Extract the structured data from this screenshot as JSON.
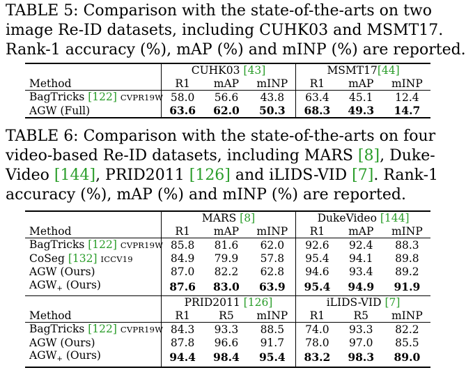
{
  "table5": {
    "caption_lines": [
      "TABLE 5: Comparison with the state-of-the-arts on two",
      "image Re-ID datasets, including CUHK03 and MSMT17.",
      "Rank-1 accuracy (%), mAP (%) and mINP (%) are reported."
    ],
    "group1": {
      "name": "CUHK03",
      "ref": "[43]"
    },
    "group2": {
      "name": "MSMT17",
      "ref": "[44]"
    },
    "header": [
      "Method",
      "R1",
      "mAP",
      "mINP",
      "R1",
      "mAP",
      "mINP"
    ],
    "rows": [
      {
        "method": "BagTricks",
        "ref": "[122]",
        "venue": "CVPR19W",
        "values": [
          "58.0",
          "56.6",
          "43.8",
          "63.4",
          "45.1",
          "12.4"
        ],
        "bold": false
      },
      {
        "method": "AGW (Full)",
        "ref": "",
        "venue": "",
        "values": [
          "63.6",
          "62.0",
          "50.3",
          "68.3",
          "49.3",
          "14.7"
        ],
        "bold": true
      }
    ]
  },
  "table6": {
    "caption": {
      "l1": "TABLE 6: Comparison with the state-of-the-arts on four",
      "l2a": "video-based Re-ID datasets, including MARS ",
      "l2ref": "[8]",
      "l2b": ", Duke-",
      "l3a": "Video ",
      "l3ref1": "[144]",
      "l3b": ", PRID2011 ",
      "l3ref2": "[126]",
      "l3c": " and iLIDS-VID ",
      "l3ref3": "[7]",
      "l3d": ". Rank-1",
      "l4": "accuracy (%), mAP (%) and mINP (%) are reported."
    },
    "block1": {
      "group1": {
        "name": "MARS",
        "ref": "[8]"
      },
      "group2": {
        "name": "DukeVideo",
        "ref": "[144]"
      },
      "header": [
        "Method",
        "R1",
        "mAP",
        "mINP",
        "R1",
        "mAP",
        "mINP"
      ],
      "rows": [
        {
          "method": "BagTricks",
          "ref": "[122]",
          "venue": "CVPR19W",
          "values": [
            "85.8",
            "81.6",
            "62.0",
            "92.6",
            "92.4",
            "88.3"
          ]
        },
        {
          "method": "CoSeg",
          "ref": "[132]",
          "venue": "ICCV19",
          "values": [
            "84.9",
            "79.9",
            "57.8",
            "95.4",
            "94.1",
            "89.8"
          ]
        },
        {
          "method": "AGW (Ours)",
          "ref": "",
          "venue": "",
          "values": [
            "87.0",
            "82.2",
            "62.8",
            "94.6",
            "93.4",
            "89.2"
          ]
        },
        {
          "method": "AGW",
          "sub": "+",
          "suffix": " (Ours)",
          "values": [
            "87.6",
            "83.0",
            "63.9",
            "95.4",
            "94.9",
            "91.9"
          ]
        }
      ]
    },
    "block2": {
      "group1": {
        "name": "PRID2011",
        "ref": "[126]"
      },
      "group2": {
        "name": "iLIDS-VID",
        "ref": "[7]"
      },
      "header": [
        "Method",
        "R1",
        "R5",
        "mINP",
        "R1",
        "R5",
        "mINP"
      ],
      "rows": [
        {
          "method": "BagTricks",
          "ref": "[122]",
          "venue": "CVPR19W",
          "values": [
            "84.3",
            "93.3",
            "88.5",
            "74.0",
            "93.3",
            "82.2"
          ]
        },
        {
          "method": "AGW (Ours)",
          "ref": "",
          "venue": "",
          "values": [
            "87.8",
            "96.6",
            "91.7",
            "78.0",
            "97.0",
            "85.5"
          ]
        },
        {
          "method": "AGW",
          "sub": "+",
          "suffix": " (Ours)",
          "values": [
            "94.4",
            "98.4",
            "95.4",
            "83.2",
            "98.3",
            "89.0"
          ]
        }
      ]
    }
  }
}
